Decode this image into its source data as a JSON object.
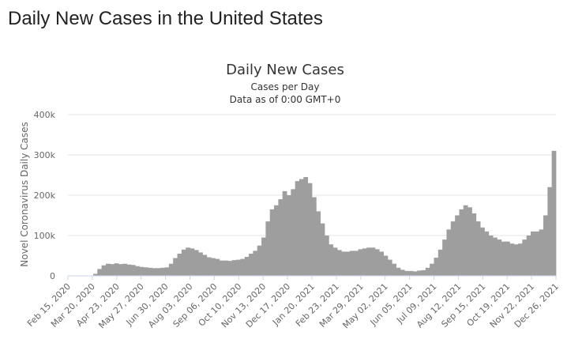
{
  "page": {
    "title": "Daily New Cases in the United States"
  },
  "chart_data": {
    "type": "bar",
    "title": "Daily New Cases",
    "subtitle_line1": "Cases per Day",
    "subtitle_line2": "Data as of 0:00 GMT+0",
    "ylabel": "Novel Coronavirus Daily Cases",
    "xlabel": "",
    "ylim": [
      0,
      400000
    ],
    "ytick_labels": [
      "0",
      "100k",
      "200k",
      "300k",
      "400k"
    ],
    "ytick_values": [
      0,
      100000,
      200000,
      300000,
      400000
    ],
    "xtick_labels": [
      "Feb 15, 2020",
      "Mar 20, 2020",
      "Apr 23, 2020",
      "May 27, 2020",
      "Jun 30, 2020",
      "Aug 03, 2020",
      "Sep 06, 2020",
      "Oct 10, 2020",
      "Nov 13, 2020",
      "Dec 17, 2020",
      "Jan 20, 2021",
      "Feb 23, 2021",
      "Mar 29, 2021",
      "May 02, 2021",
      "Jun 05, 2021",
      "Jul 09, 2021",
      "Aug 12, 2021",
      "Sep 15, 2021",
      "Oct 19, 2021",
      "Nov 22, 2021",
      "Dec 26, 2021"
    ],
    "grid": true,
    "bar_color": "#9e9e9e",
    "series": [
      {
        "x_start": "Feb 15, 2020",
        "x_end": "Dec 31, 2021",
        "weekly_values": [
          0,
          0,
          0,
          0,
          200,
          1000,
          5000,
          17000,
          26000,
          30000,
          29000,
          31000,
          29000,
          30000,
          28000,
          27000,
          24000,
          22000,
          21000,
          20000,
          19000,
          19000,
          20000,
          21000,
          30000,
          44000,
          55000,
          65000,
          70000,
          68000,
          64000,
          58000,
          52000,
          46000,
          44000,
          42000,
          38000,
          38000,
          37000,
          39000,
          40000,
          42000,
          47000,
          55000,
          62000,
          75000,
          95000,
          135000,
          165000,
          175000,
          190000,
          210000,
          200000,
          215000,
          235000,
          240000,
          245000,
          230000,
          195000,
          160000,
          130000,
          100000,
          78000,
          70000,
          64000,
          60000,
          60000,
          62000,
          62000,
          66000,
          68000,
          70000,
          70000,
          66000,
          60000,
          50000,
          40000,
          30000,
          20000,
          15000,
          12000,
          12000,
          11000,
          13000,
          14000,
          20000,
          30000,
          45000,
          65000,
          90000,
          115000,
          135000,
          150000,
          165000,
          175000,
          170000,
          155000,
          135000,
          120000,
          110000,
          100000,
          95000,
          90000,
          85000,
          85000,
          80000,
          78000,
          80000,
          90000,
          100000,
          110000,
          110000,
          115000,
          150000,
          220000,
          310000
        ]
      }
    ]
  }
}
